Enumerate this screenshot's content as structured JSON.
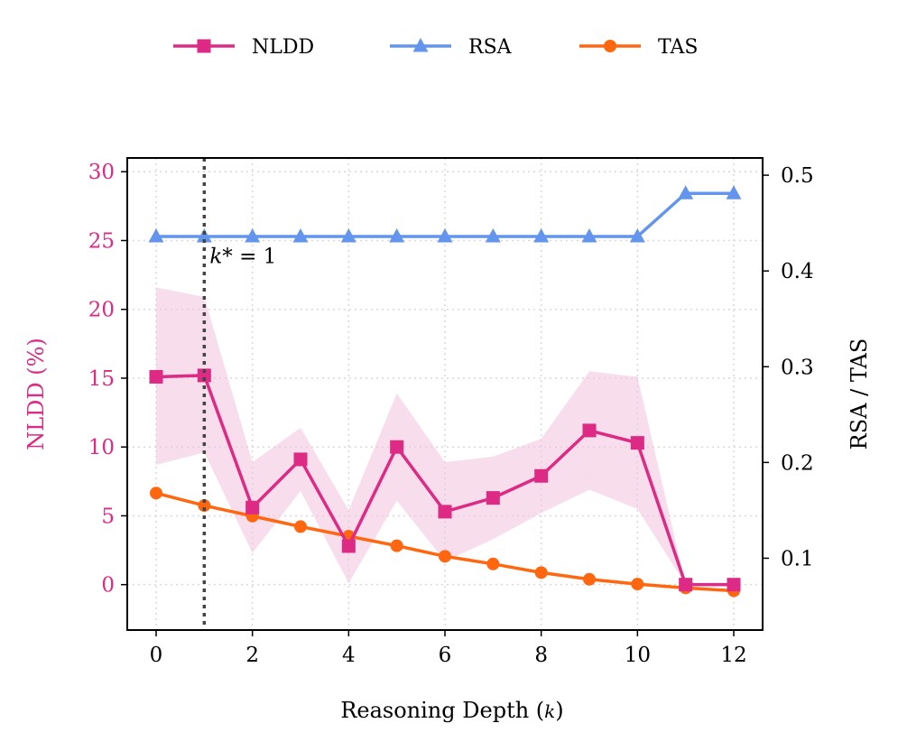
{
  "colors": {
    "nldd": "#dd2a84",
    "nldd_band": "#f4c6df",
    "rsa": "#6495ed",
    "tas": "#ff6610",
    "grid": "#d9d9d9",
    "refline": "#444444"
  },
  "chart_data": {
    "type": "line",
    "title": "",
    "xlabel": "Reasoning Depth (k)",
    "xlabel_prefix": "Reasoning Depth (",
    "xlabel_var": "k",
    "xlabel_suffix": ")",
    "ylabel_left": "NLDD (%)",
    "ylabel_right": "RSA / TAS",
    "xlim": [
      -0.6,
      12.6
    ],
    "ylim_left": [
      -3.3,
      31.0
    ],
    "ylim_right": [
      0.025,
      0.518
    ],
    "x_ticks": [
      0,
      2,
      4,
      6,
      8,
      10,
      12
    ],
    "y_ticks_left": [
      0,
      5,
      10,
      15,
      20,
      25,
      30
    ],
    "y_ticks_right": [
      0.1,
      0.2,
      0.3,
      0.4,
      0.5
    ],
    "grid": true,
    "legend_position": "top-center",
    "x": [
      0,
      1,
      2,
      3,
      4,
      5,
      6,
      7,
      8,
      9,
      10,
      11,
      12
    ],
    "series": [
      {
        "name": "NLDD",
        "axis": "left",
        "marker": "square",
        "values": [
          15.1,
          15.2,
          5.6,
          9.1,
          2.8,
          10.0,
          5.3,
          6.3,
          7.9,
          11.2,
          10.3,
          0.0,
          0.0
        ],
        "band_upper": [
          21.6,
          20.9,
          8.9,
          11.4,
          5.4,
          13.9,
          8.9,
          9.3,
          10.6,
          15.5,
          15.1,
          0.0,
          0.0
        ],
        "band_lower": [
          8.7,
          9.6,
          2.3,
          6.8,
          0.1,
          6.1,
          1.7,
          3.3,
          5.2,
          6.9,
          5.5,
          0.0,
          0.0
        ]
      },
      {
        "name": "RSA",
        "axis": "right",
        "marker": "triangle",
        "values": [
          0.436,
          0.436,
          0.436,
          0.436,
          0.436,
          0.436,
          0.436,
          0.436,
          0.436,
          0.436,
          0.436,
          0.481,
          0.481
        ]
      },
      {
        "name": "TAS",
        "axis": "right",
        "marker": "circle",
        "values": [
          0.168,
          0.155,
          0.144,
          0.133,
          0.123,
          0.113,
          0.102,
          0.094,
          0.085,
          0.078,
          0.073,
          0.069,
          0.066
        ]
      }
    ],
    "annotations": [
      {
        "type": "vline",
        "x": 1,
        "label_prefix": "k",
        "label_suffix": "* = 1",
        "label_y": 23.9
      }
    ]
  }
}
